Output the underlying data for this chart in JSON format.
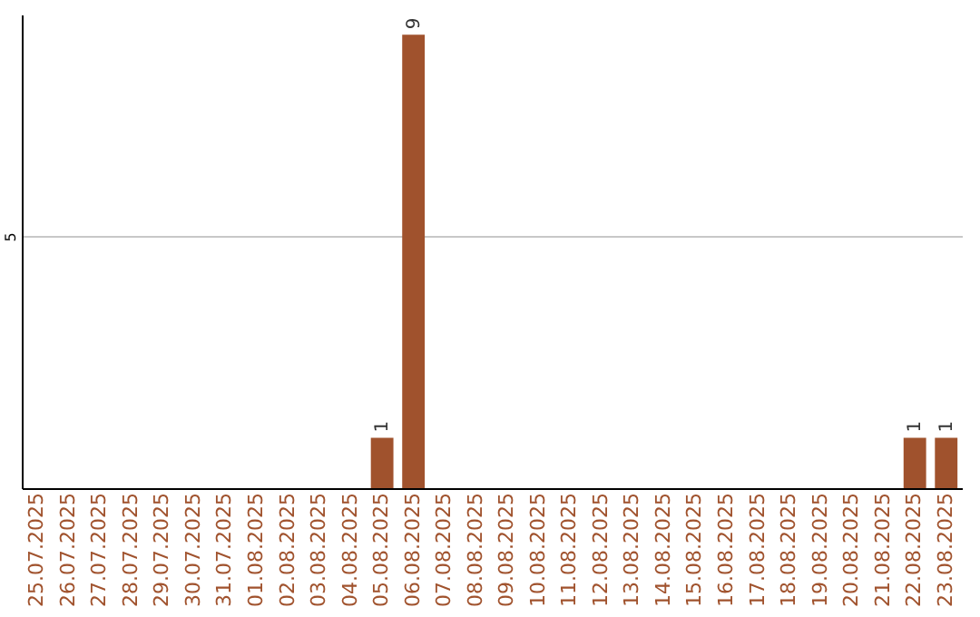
{
  "chart_data": {
    "type": "bar",
    "categories": [
      "25.07.2025",
      "26.07.2025",
      "27.07.2025",
      "28.07.2025",
      "29.07.2025",
      "30.07.2025",
      "31.07.2025",
      "01.08.2025",
      "02.08.2025",
      "03.08.2025",
      "04.08.2025",
      "05.08.2025",
      "06.08.2025",
      "07.08.2025",
      "08.08.2025",
      "09.08.2025",
      "10.08.2025",
      "11.08.2025",
      "12.08.2025",
      "13.08.2025",
      "14.08.2025",
      "15.08.2025",
      "16.08.2025",
      "17.08.2025",
      "18.08.2025",
      "19.08.2025",
      "20.08.2025",
      "21.08.2025",
      "22.08.2025",
      "23.08.2025"
    ],
    "values": [
      0,
      0,
      0,
      0,
      0,
      0,
      0,
      0,
      0,
      0,
      0,
      1,
      9,
      0,
      0,
      0,
      0,
      0,
      0,
      0,
      0,
      0,
      0,
      0,
      0,
      0,
      0,
      0,
      1,
      1
    ],
    "value_labels": [
      null,
      null,
      null,
      null,
      null,
      null,
      null,
      null,
      null,
      null,
      null,
      "1",
      "9",
      null,
      null,
      null,
      null,
      null,
      null,
      null,
      null,
      null,
      null,
      null,
      null,
      null,
      null,
      null,
      "1",
      "1"
    ],
    "color": "#a0522d",
    "ylim": [
      0,
      9.4
    ],
    "yticks": [
      {
        "value": 0,
        "label": null
      },
      5
    ],
    "grid": "y"
  }
}
